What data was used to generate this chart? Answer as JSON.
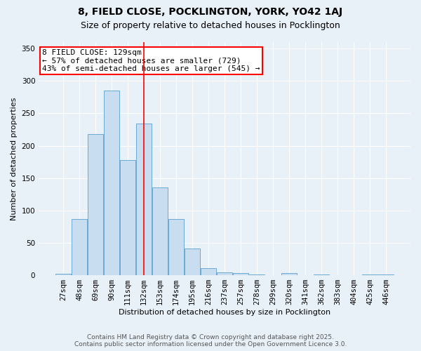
{
  "title1": "8, FIELD CLOSE, POCKLINGTON, YORK, YO42 1AJ",
  "title2": "Size of property relative to detached houses in Pocklington",
  "xlabel": "Distribution of detached houses by size in Pocklington",
  "ylabel": "Number of detached properties",
  "categories": [
    "27sqm",
    "48sqm",
    "69sqm",
    "90sqm",
    "111sqm",
    "132sqm",
    "153sqm",
    "174sqm",
    "195sqm",
    "216sqm",
    "237sqm",
    "257sqm",
    "278sqm",
    "299sqm",
    "320sqm",
    "341sqm",
    "362sqm",
    "383sqm",
    "404sqm",
    "425sqm",
    "446sqm"
  ],
  "values": [
    2,
    87,
    218,
    285,
    178,
    234,
    136,
    87,
    41,
    11,
    4,
    3,
    1,
    0,
    3,
    0,
    1,
    0,
    0,
    1,
    1
  ],
  "bar_color": "#c8ddf0",
  "bar_edge_color": "#6aaad4",
  "ylim": [
    0,
    360
  ],
  "yticks": [
    0,
    50,
    100,
    150,
    200,
    250,
    300,
    350
  ],
  "red_line_index": 5,
  "annotation_title": "8 FIELD CLOSE: 129sqm",
  "annotation_line1": "← 57% of detached houses are smaller (729)",
  "annotation_line2": "43% of semi-detached houses are larger (545) →",
  "footer1": "Contains HM Land Registry data © Crown copyright and database right 2025.",
  "footer2": "Contains public sector information licensed under the Open Government Licence 3.0.",
  "bg_color": "#e8f0f8",
  "plot_bg_color": "#e8f0f8",
  "grid_color": "#ffffff",
  "title_fontsize": 10,
  "subtitle_fontsize": 9,
  "axis_label_fontsize": 8,
  "tick_fontsize": 7.5,
  "annotation_fontsize": 8,
  "footer_fontsize": 6.5
}
